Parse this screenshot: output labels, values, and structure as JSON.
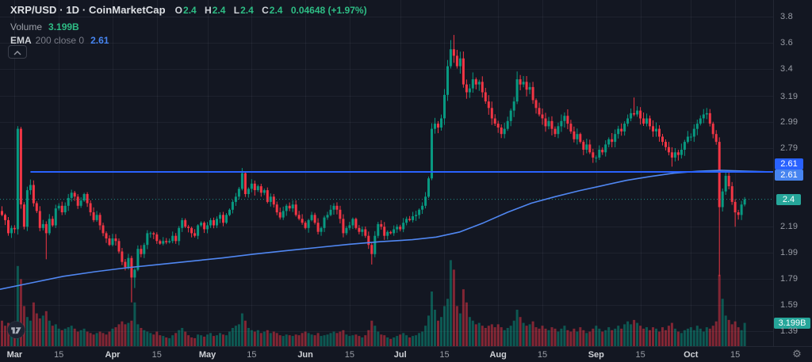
{
  "header": {
    "title": "XRP/USD · 1D · CoinMarketCap",
    "ohlc": {
      "o_label": "O",
      "o": "2.4",
      "h_label": "H",
      "h": "2.4",
      "l_label": "L",
      "l": "2.4",
      "c_label": "C",
      "c": "2.4",
      "change": "0.04648 (+1.97%)"
    },
    "volume_row": {
      "label": "Volume",
      "value": "3.199B"
    },
    "ema_row": {
      "label": "EMA",
      "params": "200 close 0",
      "value": "2.61"
    }
  },
  "badges": {
    "ema": "2.61",
    "horizontal_line": "2.61",
    "current_price": "2.4",
    "current_volume": "3.199B"
  },
  "icons": {
    "legend_collapse": "chevron-up",
    "time_axis_settings": "gear",
    "watermark": "tradingview-logo"
  },
  "colors": {
    "background": "#131722",
    "up": "#089981",
    "down": "#f23645",
    "ema_line": "#5087f2",
    "drawn_line": "#2962ff",
    "price_line": "#26a69a",
    "legend_value_green": "#2ebd85",
    "badge_blue": "#2962ff",
    "badge_light_blue": "#4785f0",
    "badge_teal": "#26a69a"
  },
  "chart_data": {
    "type": "candlestick",
    "title": "XRP/USD 1D CoinMarketCap",
    "legend_position": "top-left",
    "grid": true,
    "y_axis": {
      "side": "right",
      "range": [
        1.27,
        3.93
      ],
      "ticks": [
        {
          "label": "3.8",
          "value": 3.8
        },
        {
          "label": "3.6",
          "value": 3.6
        },
        {
          "label": "3.4",
          "value": 3.4
        },
        {
          "label": "3.19",
          "value": 3.19
        },
        {
          "label": "2.99",
          "value": 2.99
        },
        {
          "label": "2.79",
          "value": 2.79
        },
        {
          "label": "2.19",
          "value": 2.19
        },
        {
          "label": "1.99",
          "value": 1.99
        },
        {
          "label": "1.79",
          "value": 1.79
        },
        {
          "label": "1.59",
          "value": 1.59
        },
        {
          "label": "1.39",
          "value": 1.39
        }
      ]
    },
    "x_axis": {
      "ticks": [
        {
          "label": "Mar",
          "index": 4,
          "major": true
        },
        {
          "label": "15",
          "index": 18,
          "major": false
        },
        {
          "label": "Apr",
          "index": 35,
          "major": true
        },
        {
          "label": "15",
          "index": 49,
          "major": false
        },
        {
          "label": "May",
          "index": 65,
          "major": true
        },
        {
          "label": "15",
          "index": 79,
          "major": false
        },
        {
          "label": "Jun",
          "index": 96,
          "major": true
        },
        {
          "label": "15",
          "index": 110,
          "major": false
        },
        {
          "label": "Jul",
          "index": 126,
          "major": true
        },
        {
          "label": "15",
          "index": 140,
          "major": false
        },
        {
          "label": "Aug",
          "index": 157,
          "major": true
        },
        {
          "label": "15",
          "index": 171,
          "major": false
        },
        {
          "label": "Sep",
          "index": 188,
          "major": true
        },
        {
          "label": "15",
          "index": 202,
          "major": false
        },
        {
          "label": "Oct",
          "index": 218,
          "major": true
        },
        {
          "label": "15",
          "index": 232,
          "major": false
        }
      ]
    },
    "candles": {
      "open_rule": "previous_close",
      "first_open": 2.31,
      "closes": [
        2.28,
        2.24,
        2.14,
        2.18,
        2.17,
        2.94,
        2.36,
        2.19,
        2.47,
        2.51,
        2.37,
        2.31,
        2.18,
        2.21,
        2.14,
        2.25,
        2.2,
        2.33,
        2.35,
        2.3,
        2.35,
        2.41,
        2.45,
        2.42,
        2.35,
        2.39,
        2.44,
        2.37,
        2.3,
        2.24,
        2.28,
        2.2,
        2.14,
        2.1,
        2.05,
        2.1,
        2.08,
        2.0,
        1.92,
        1.88,
        1.95,
        1.8,
        1.86,
        2.02,
        1.98,
        2.05,
        2.14,
        2.14,
        2.13,
        2.08,
        2.06,
        2.08,
        2.07,
        2.08,
        2.12,
        2.08,
        2.18,
        2.24,
        2.19,
        2.18,
        2.14,
        2.12,
        2.2,
        2.22,
        2.17,
        2.2,
        2.24,
        2.2,
        2.25,
        2.28,
        2.22,
        2.28,
        2.32,
        2.38,
        2.42,
        2.48,
        2.6,
        2.44,
        2.48,
        2.52,
        2.47,
        2.5,
        2.45,
        2.47,
        2.38,
        2.42,
        2.36,
        2.3,
        2.26,
        2.31,
        2.35,
        2.33,
        2.36,
        2.28,
        2.25,
        2.22,
        2.18,
        2.24,
        2.28,
        2.22,
        2.15,
        2.18,
        2.26,
        2.28,
        2.32,
        2.35,
        2.32,
        2.25,
        2.14,
        2.18,
        2.2,
        2.25,
        2.18,
        2.15,
        2.17,
        2.12,
        2.05,
        1.98,
        2.12,
        2.21,
        2.19,
        2.12,
        2.15,
        2.14,
        2.17,
        2.19,
        2.17,
        2.22,
        2.25,
        2.24,
        2.27,
        2.28,
        2.32,
        2.35,
        2.42,
        2.56,
        2.94,
        2.98,
        2.95,
        3.02,
        3.2,
        3.42,
        3.55,
        3.5,
        3.42,
        3.48,
        3.28,
        3.22,
        3.25,
        3.32,
        3.28,
        3.3,
        3.22,
        3.15,
        3.1,
        3.02,
        2.98,
        2.95,
        2.9,
        2.94,
        3.0,
        3.08,
        3.15,
        3.32,
        3.28,
        3.3,
        3.24,
        3.26,
        3.16,
        3.1,
        3.05,
        3.02,
        2.96,
        3.0,
        2.94,
        2.9,
        2.96,
        3.0,
        3.04,
        2.98,
        2.92,
        2.86,
        2.9,
        2.84,
        2.78,
        2.82,
        2.76,
        2.72,
        2.72,
        2.78,
        2.76,
        2.82,
        2.86,
        2.84,
        2.9,
        2.94,
        2.92,
        2.98,
        3.02,
        3.06,
        3.05,
        3.08,
        3.02,
        2.98,
        3.02,
        2.96,
        2.92,
        2.94,
        2.88,
        2.84,
        2.8,
        2.76,
        2.72,
        2.76,
        2.74,
        2.78,
        2.84,
        2.88,
        2.88,
        2.94,
        2.98,
        3.02,
        3.05,
        3.06,
        2.98,
        2.9,
        2.84,
        2.34,
        2.46,
        2.58,
        2.5,
        2.38,
        2.3,
        2.28,
        2.36,
        2.4
      ],
      "wick_overrides": {
        "5": {
          "high": 2.96
        },
        "14": {
          "low": 1.94
        },
        "41": {
          "low": 1.61
        },
        "42": {
          "low": 1.72
        },
        "76": {
          "high": 2.64
        },
        "117": {
          "low": 1.9
        },
        "142": {
          "high": 3.62
        },
        "143": {
          "high": 3.66
        },
        "163": {
          "high": 3.38
        },
        "200": {
          "high": 3.18
        },
        "212": {
          "low": 2.65
        },
        "223": {
          "high": 3.1
        },
        "227": {
          "low": 1.81
        },
        "232": {
          "low": 2.19
        }
      }
    },
    "volume_billions": [
      3.5,
      2.8,
      3.2,
      2.6,
      2.2,
      11.0,
      9.2,
      5.5,
      4.0,
      3.5,
      6.0,
      4.5,
      3.8,
      4.2,
      4.8,
      3.5,
      2.8,
      3.0,
      2.4,
      2.2,
      2.4,
      2.6,
      2.8,
      2.4,
      2.0,
      2.2,
      2.4,
      2.0,
      1.8,
      1.6,
      1.8,
      2.0,
      1.8,
      1.6,
      2.0,
      2.4,
      2.6,
      3.0,
      3.4,
      3.0,
      3.2,
      3.5,
      6.0,
      3.0,
      2.5,
      2.2,
      2.0,
      1.8,
      1.6,
      2.0,
      1.5,
      1.4,
      1.2,
      1.1,
      1.5,
      1.8,
      2.2,
      2.5,
      2.0,
      1.5,
      1.2,
      1.1,
      1.6,
      1.5,
      1.3,
      1.6,
      1.8,
      1.4,
      1.5,
      1.8,
      1.6,
      1.5,
      2.0,
      2.5,
      2.8,
      3.0,
      4.5,
      3.5,
      2.5,
      2.2,
      2.0,
      2.2,
      1.8,
      2.0,
      2.2,
      1.8,
      2.0,
      1.8,
      1.5,
      1.4,
      1.6,
      1.5,
      1.4,
      1.6,
      1.5,
      1.8,
      2.0,
      1.8,
      1.6,
      1.5,
      1.8,
      1.4,
      1.5,
      1.6,
      1.8,
      2.0,
      1.8,
      2.0,
      2.2,
      1.6,
      1.4,
      1.5,
      1.6,
      1.4,
      1.2,
      1.5,
      2.2,
      3.5,
      2.8,
      2.0,
      1.6,
      1.5,
      1.2,
      1.0,
      1.2,
      1.4,
      1.6,
      1.8,
      1.5,
      1.2,
      1.4,
      1.5,
      1.8,
      2.0,
      2.8,
      4.2,
      7.5,
      5.0,
      3.5,
      4.0,
      5.5,
      6.5,
      11.8,
      10.5,
      5.5,
      4.5,
      7.8,
      6.0,
      4.0,
      3.5,
      3.0,
      3.2,
      2.8,
      2.5,
      2.8,
      3.0,
      2.6,
      3.0,
      2.6,
      2.2,
      2.5,
      2.8,
      3.5,
      5.0,
      4.0,
      3.2,
      2.8,
      3.0,
      3.4,
      2.6,
      2.4,
      2.8,
      2.4,
      2.2,
      2.6,
      2.4,
      2.0,
      2.4,
      2.8,
      2.2,
      2.0,
      2.4,
      2.0,
      2.6,
      2.2,
      1.8,
      2.0,
      2.4,
      2.8,
      2.4,
      2.0,
      2.2,
      2.6,
      2.2,
      2.4,
      2.8,
      2.4,
      3.0,
      3.4,
      3.0,
      3.6,
      3.2,
      2.8,
      2.4,
      2.6,
      2.2,
      2.6,
      2.4,
      2.0,
      2.6,
      2.2,
      2.8,
      3.2,
      2.4,
      2.0,
      1.8,
      2.2,
      2.4,
      2.6,
      2.2,
      2.8,
      2.4,
      2.0,
      2.6,
      2.4,
      2.8,
      3.4,
      9.8,
      6.5,
      4.2,
      3.6,
      3.0,
      3.4,
      2.6,
      2.2,
      3.199
    ],
    "ema_200": {
      "current": 2.61,
      "points": [
        [
          0,
          1.71
        ],
        [
          40,
          1.76
        ],
        [
          80,
          1.81
        ],
        [
          120,
          1.845
        ],
        [
          160,
          1.875
        ],
        [
          200,
          1.9
        ],
        [
          240,
          1.925
        ],
        [
          280,
          1.95
        ],
        [
          320,
          1.98
        ],
        [
          360,
          2.005
        ],
        [
          400,
          2.03
        ],
        [
          440,
          2.055
        ],
        [
          480,
          2.075
        ],
        [
          520,
          2.09
        ],
        [
          550,
          2.11
        ],
        [
          580,
          2.15
        ],
        [
          610,
          2.22
        ],
        [
          640,
          2.3
        ],
        [
          670,
          2.37
        ],
        [
          700,
          2.42
        ],
        [
          730,
          2.465
        ],
        [
          760,
          2.505
        ],
        [
          790,
          2.545
        ],
        [
          820,
          2.575
        ],
        [
          850,
          2.6
        ],
        [
          880,
          2.615
        ],
        [
          910,
          2.622
        ],
        [
          940,
          2.616
        ],
        [
          975,
          2.61
        ]
      ]
    },
    "horizontal_line": {
      "price": 2.61,
      "start_index": 9
    },
    "current_price_line": {
      "value": 2.4
    },
    "current_volume": {
      "value": 3.199
    }
  }
}
